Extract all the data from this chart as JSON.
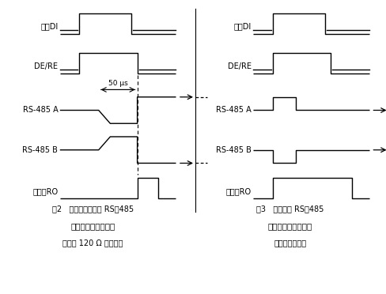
{
  "bg_color": "#ffffff",
  "fig2_label": "数据DI",
  "fig2_dere_label": "DE/RE",
  "fig2_485a_label": "RS-485 A",
  "fig2_485b_label": "RS-485 B",
  "fig2_ro_label": "接收端RO",
  "fig3_label": "数据DI",
  "fig3_dere_label": "DE/RE",
  "fig3_485a_label": "RS-485 A",
  "fig3_485b_label": "RS-485 B",
  "fig3_ro_label": "接收端RO",
  "caption2_line1": "图2   自动收发转换的 RS－485",
  "caption2_line2": "接口电路的测试波形",
  "caption2_line3": "（未加 120 Ω 端电阻）",
  "caption3_line1": "图3   零延时的 RS－485",
  "caption3_line2": "接口电路的测试波形",
  "caption3_line3": "（加短路电缆）",
  "us_label": "50 μs"
}
